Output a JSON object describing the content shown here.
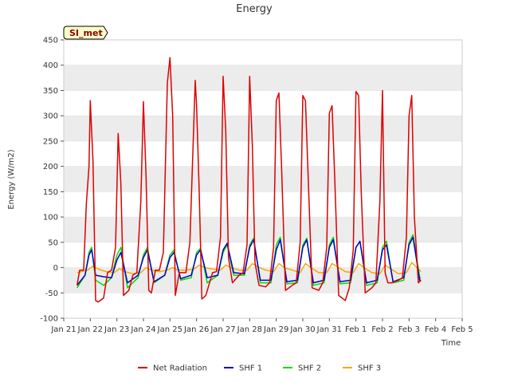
{
  "chart_data": {
    "type": "line",
    "title": "Energy",
    "xlabel": "Time",
    "ylabel": "Energy (W/m2)",
    "site_label": "SI_met",
    "ylim": [
      -100,
      450
    ],
    "yticks": [
      -100,
      -50,
      0,
      50,
      100,
      150,
      200,
      250,
      300,
      350,
      400,
      450
    ],
    "xlim": [
      0,
      15
    ],
    "xticks": [
      0,
      1,
      2,
      3,
      4,
      5,
      6,
      7,
      8,
      9,
      10,
      11,
      12,
      13,
      14,
      15
    ],
    "xtick_labels": [
      "Jan 21",
      "Jan 22",
      "Jan 23",
      "Jan 24",
      "Jan 25",
      "Jan 26",
      "Jan 27",
      "Jan 28",
      "Jan 29",
      "Jan 30",
      "Jan 31",
      "Feb 1",
      "Feb 2",
      "Feb 3",
      "Feb 4",
      "Feb 5"
    ],
    "x_units": "days since Jan 21",
    "grid_bands": true,
    "legend_position": "bottom-center",
    "series": [
      {
        "name": "Net Radiation",
        "color": "#dd0000",
        "x": [
          0.5,
          0.6,
          0.75,
          0.85,
          0.95,
          1.0,
          1.1,
          1.2,
          1.3,
          1.5,
          1.65,
          1.8,
          1.95,
          2.05,
          2.15,
          2.25,
          2.45,
          2.6,
          2.75,
          2.9,
          3.0,
          3.1,
          3.2,
          3.3,
          3.45,
          3.6,
          3.75,
          3.9,
          4.0,
          4.1,
          4.2,
          4.35,
          4.6,
          4.75,
          4.95,
          5.0,
          5.1,
          5.2,
          5.35,
          5.6,
          5.75,
          5.9,
          6.0,
          6.1,
          6.2,
          6.35,
          6.6,
          6.75,
          6.9,
          7.0,
          7.1,
          7.2,
          7.35,
          7.6,
          7.75,
          7.9,
          8.0,
          8.1,
          8.2,
          8.35,
          8.6,
          8.75,
          8.9,
          9.0,
          9.1,
          9.2,
          9.35,
          9.6,
          9.75,
          9.9,
          10.0,
          10.1,
          10.2,
          10.35,
          10.6,
          10.75,
          10.9,
          11.0,
          11.1,
          11.2,
          11.35,
          11.6,
          11.75,
          11.9,
          12.0,
          12.1,
          12.2,
          12.35,
          12.6,
          12.75,
          12.9,
          13.0,
          13.1,
          13.2,
          13.35,
          13.45
        ],
        "y": [
          -35,
          -5,
          -5,
          125,
          200,
          330,
          210,
          -65,
          -68,
          -60,
          -10,
          -5,
          40,
          265,
          165,
          -55,
          -45,
          -15,
          -10,
          130,
          328,
          180,
          -45,
          -50,
          -5,
          -5,
          30,
          365,
          415,
          300,
          -55,
          -10,
          -10,
          50,
          370,
          320,
          150,
          -62,
          -55,
          -10,
          -8,
          60,
          378,
          270,
          20,
          -30,
          -15,
          -10,
          45,
          378,
          240,
          10,
          -35,
          -38,
          -30,
          40,
          330,
          345,
          200,
          -45,
          -35,
          -30,
          50,
          340,
          330,
          180,
          -40,
          -45,
          -30,
          40,
          305,
          320,
          180,
          -55,
          -65,
          -40,
          35,
          348,
          340,
          150,
          -50,
          -40,
          -30,
          130,
          350,
          -10,
          -30,
          -30,
          -25,
          -20,
          60,
          300,
          340,
          100,
          -30,
          -25
        ]
      },
      {
        "name": "SHF 1",
        "color": "#0000cc",
        "x": [
          0.5,
          0.8,
          0.95,
          1.05,
          1.2,
          1.5,
          1.8,
          2.0,
          2.15,
          2.4,
          2.8,
          3.0,
          3.15,
          3.4,
          3.8,
          4.0,
          4.15,
          4.4,
          4.8,
          5.0,
          5.15,
          5.4,
          5.8,
          6.0,
          6.15,
          6.4,
          6.8,
          7.0,
          7.15,
          7.4,
          7.8,
          8.0,
          8.15,
          8.4,
          8.8,
          9.0,
          9.15,
          9.4,
          9.8,
          10.0,
          10.15,
          10.4,
          10.8,
          11.0,
          11.15,
          11.4,
          11.8,
          12.0,
          12.15,
          12.4,
          12.8,
          13.0,
          13.15,
          13.4,
          13.45
        ],
        "y": [
          -35,
          -15,
          25,
          35,
          -15,
          -18,
          -20,
          15,
          30,
          -30,
          -15,
          20,
          35,
          -28,
          -15,
          20,
          30,
          -22,
          -15,
          25,
          35,
          -20,
          -15,
          35,
          48,
          -10,
          -12,
          40,
          55,
          -25,
          -25,
          35,
          55,
          -28,
          -25,
          40,
          55,
          -30,
          -25,
          40,
          55,
          -28,
          -25,
          40,
          52,
          -30,
          -25,
          35,
          45,
          -28,
          -20,
          45,
          60,
          -25,
          -25
        ]
      },
      {
        "name": "SHF 2",
        "color": "#00dd00",
        "x": [
          0.5,
          0.8,
          0.95,
          1.05,
          1.2,
          1.5,
          1.8,
          2.0,
          2.15,
          2.4,
          2.8,
          3.0,
          3.15,
          3.4,
          3.8,
          4.0,
          4.15,
          4.4,
          4.8,
          5.0,
          5.15,
          5.4,
          5.8,
          6.0,
          6.15,
          6.4,
          6.8,
          7.0,
          7.15,
          7.4,
          7.8,
          8.0,
          8.15,
          8.4,
          8.8,
          9.0,
          9.15,
          9.4,
          9.8,
          10.0,
          10.15,
          10.4,
          10.8,
          11.0,
          11.15,
          11.4,
          11.8,
          12.0,
          12.15,
          12.4,
          12.8,
          13.0,
          13.15,
          13.4,
          13.45
        ],
        "y": [
          -40,
          -15,
          30,
          40,
          -25,
          -35,
          -20,
          25,
          40,
          -40,
          -20,
          25,
          40,
          -30,
          -15,
          25,
          35,
          -25,
          -20,
          30,
          38,
          -30,
          -15,
          30,
          45,
          -15,
          -15,
          45,
          58,
          -30,
          -30,
          45,
          60,
          -32,
          -30,
          45,
          58,
          -35,
          -30,
          45,
          60,
          -32,
          -30,
          40,
          52,
          -35,
          -30,
          40,
          52,
          -30,
          -25,
          50,
          65,
          -20,
          -20
        ]
      },
      {
        "name": "SHF 3",
        "color": "#ffa500",
        "x": [
          0.5,
          0.9,
          1.1,
          1.3,
          1.6,
          1.9,
          2.1,
          2.3,
          2.6,
          2.9,
          3.1,
          3.3,
          3.6,
          3.9,
          4.1,
          4.3,
          4.6,
          4.9,
          5.1,
          5.3,
          5.6,
          5.9,
          6.1,
          6.3,
          6.6,
          6.9,
          7.1,
          7.3,
          7.6,
          7.9,
          8.1,
          8.3,
          8.6,
          8.9,
          9.1,
          9.3,
          9.6,
          9.9,
          10.1,
          10.3,
          10.6,
          10.9,
          11.1,
          11.3,
          11.6,
          11.9,
          12.1,
          12.3,
          12.6,
          12.9,
          13.1,
          13.3,
          13.45
        ],
        "y": [
          -10,
          -5,
          3,
          -3,
          -8,
          -10,
          -2,
          -8,
          -12,
          -10,
          0,
          -5,
          -8,
          -5,
          0,
          -5,
          -5,
          -3,
          5,
          0,
          -3,
          -5,
          5,
          0,
          -5,
          -5,
          8,
          2,
          -5,
          -8,
          8,
          0,
          -5,
          -10,
          8,
          0,
          -10,
          -10,
          8,
          2,
          -8,
          -10,
          8,
          0,
          -10,
          -12,
          5,
          -2,
          -12,
          -10,
          10,
          0,
          -8
        ]
      }
    ]
  }
}
